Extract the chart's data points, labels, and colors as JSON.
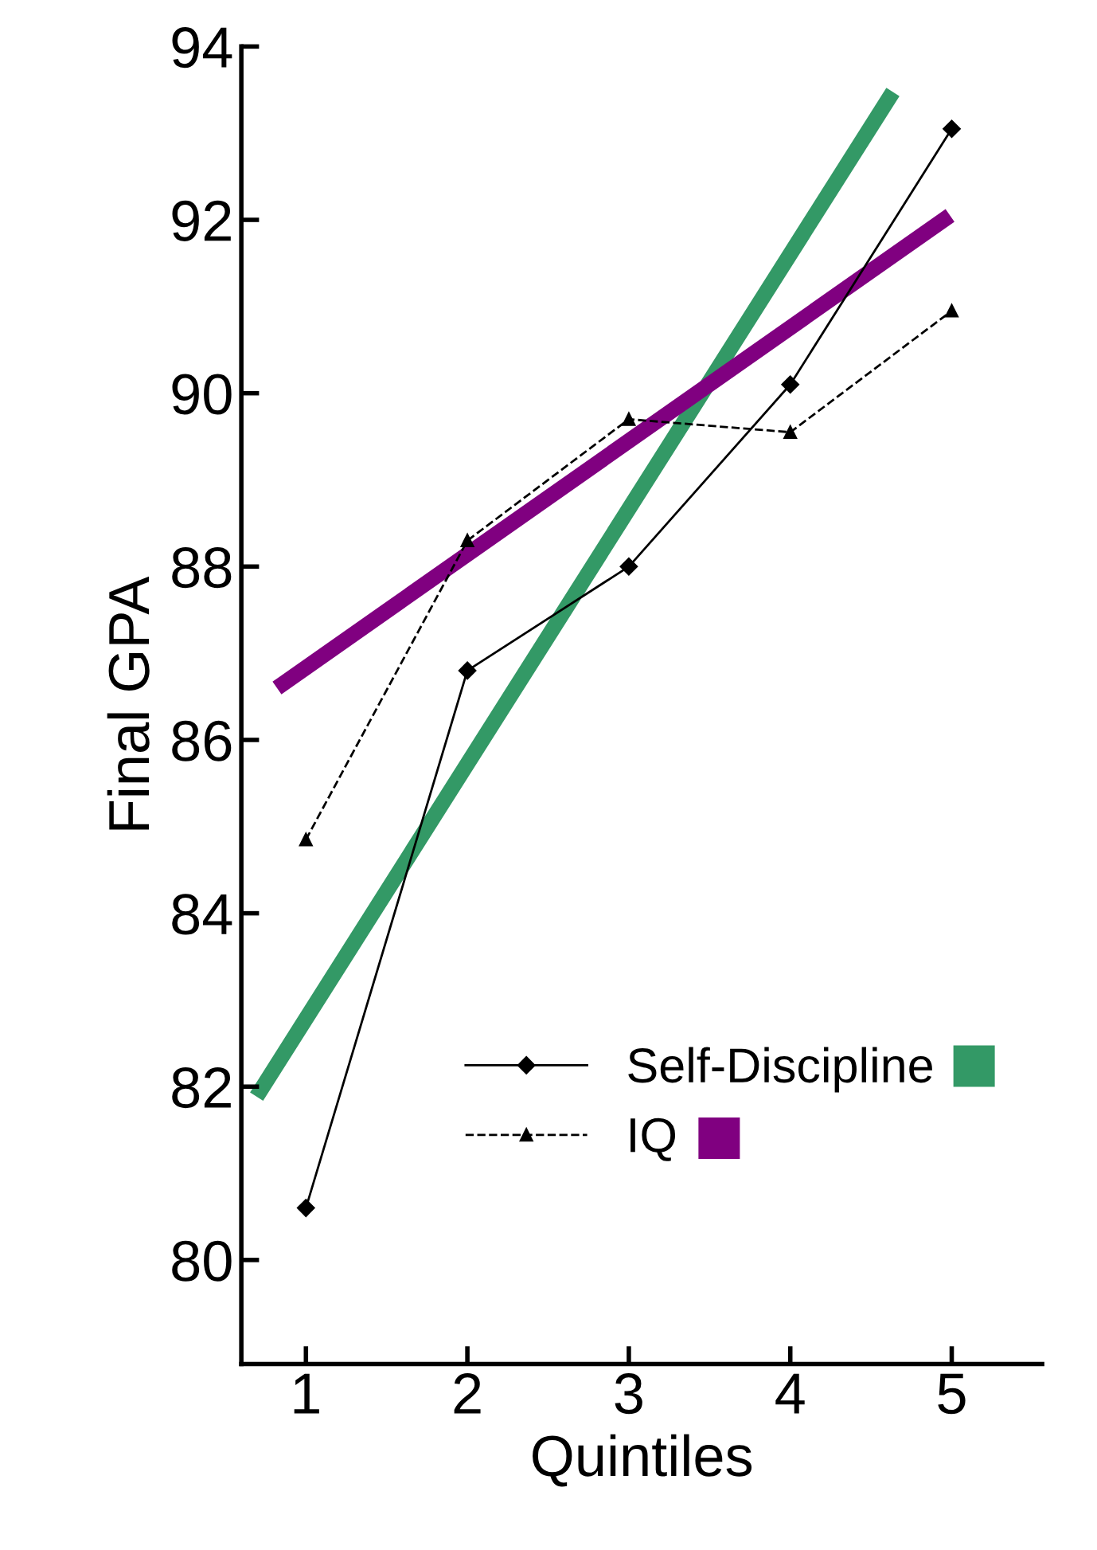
{
  "chart_data": {
    "type": "line",
    "xlabel": "Quintiles",
    "ylabel": "Final GPA",
    "x": [
      1,
      2,
      3,
      4,
      5
    ],
    "series": [
      {
        "name": "Self-Discipline",
        "color": "#000000",
        "values": [
          80.6,
          86.8,
          88.0,
          90.1,
          93.05
        ],
        "marker": "diamond",
        "line_style": "solid"
      },
      {
        "name": "IQ",
        "color": "#000000",
        "values": [
          84.85,
          88.3,
          89.7,
          89.55,
          90.95
        ],
        "marker": "triangle",
        "line_style": "dashed"
      },
      {
        "color": "#339966",
        "x": [
          0.72,
          4.61
        ],
        "values": [
          81.96,
          93.4
        ],
        "marker": "none",
        "line_style": "solid"
      },
      {
        "color": "#800080",
        "x": [
          0.86,
          4.95
        ],
        "values": [
          86.65,
          92.0
        ],
        "marker": "none",
        "line_style": "solid"
      }
    ],
    "xlim": [
      0.6,
      5.56
    ],
    "ylim": [
      78.8,
      94
    ],
    "xticks": [
      1,
      2,
      3,
      4,
      5
    ],
    "yticks": [
      80,
      82,
      84,
      86,
      88,
      90,
      92,
      94
    ],
    "grid": false,
    "legend": "bottom right"
  }
}
